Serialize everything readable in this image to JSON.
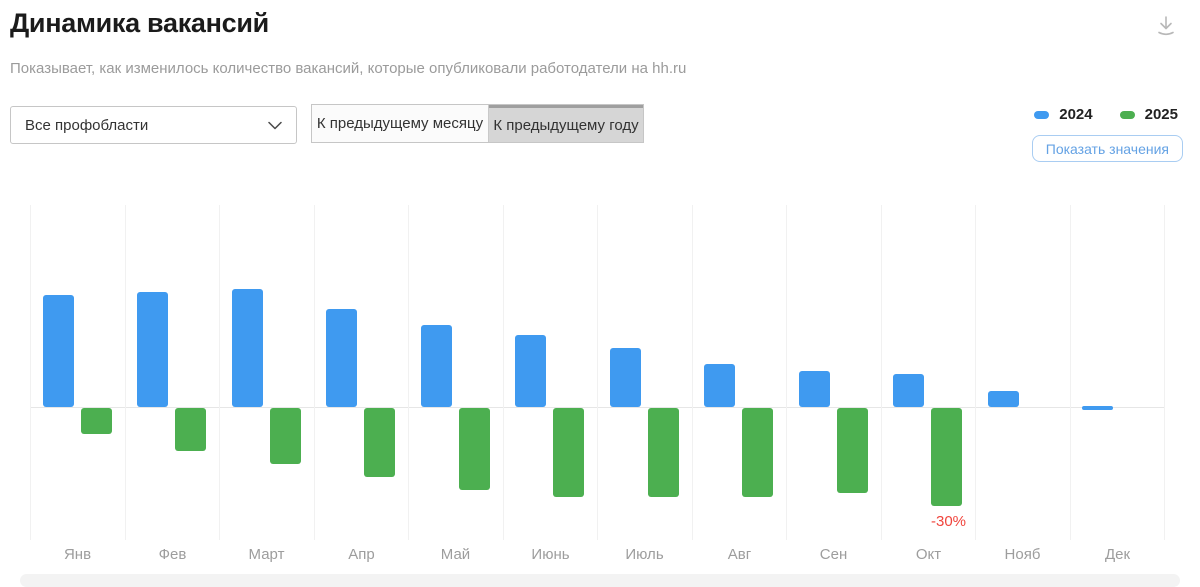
{
  "header": {
    "title": "Динамика вакансий",
    "subtitle": "Показывает, как изменилось количество вакансий, которые опубликовали работодатели на hh.ru"
  },
  "controls": {
    "profession_filter": {
      "value": "Все профобласти"
    },
    "mode_toggle": {
      "options": [
        {
          "label": "К предыдущему месяцу",
          "selected": false
        },
        {
          "label": "К предыдущему году",
          "selected": true
        }
      ]
    },
    "show_values_label": "Показать значения"
  },
  "legend": {
    "items": [
      {
        "label": "2024",
        "color": "#3f9af0"
      },
      {
        "label": "2025",
        "color": "#4caf50"
      }
    ]
  },
  "icons": {
    "download": "download-icon",
    "dropdown_chevron": "chevron-down-icon"
  },
  "colors": {
    "bar_2024": "#3f9af0",
    "bar_2025": "#4caf50",
    "annotation_red": "#f0443c",
    "gridline": "#f1f1f1",
    "baseline": "#e6e6e6",
    "axis_label": "#9d9d9d"
  },
  "chart_data": {
    "type": "bar",
    "unit": "%",
    "categories": [
      "Янв",
      "Фев",
      "Март",
      "Апр",
      "Май",
      "Июнь",
      "Июль",
      "Авг",
      "Сен",
      "Окт",
      "Нояб",
      "Дек"
    ],
    "series": [
      {
        "name": "2024",
        "color": "#3f9af0",
        "values": [
          34,
          35,
          36,
          30,
          25,
          22,
          18,
          13,
          11,
          10,
          5,
          0
        ]
      },
      {
        "name": "2025",
        "color": "#4caf50",
        "values": [
          -8,
          -13,
          -17,
          -21,
          -25,
          -27,
          -27,
          -27,
          -26,
          -30,
          null,
          null
        ]
      }
    ],
    "annotations": [
      {
        "series_index": 1,
        "category_index": 9,
        "text": "-30%",
        "color": "#f0443c"
      }
    ],
    "baseline": 0,
    "grid": "vertical-only",
    "legend_position": "top-right",
    "value_labels_hidden": true
  }
}
